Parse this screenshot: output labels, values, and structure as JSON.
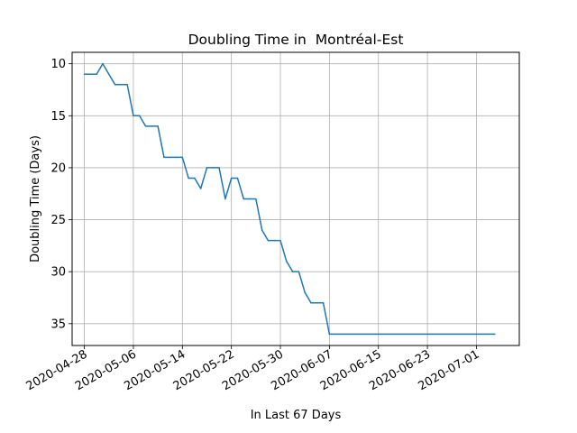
{
  "chart_data": {
    "type": "line",
    "title": "Doubling Time in  Montréal-Est",
    "xlabel": "In Last 67 Days",
    "ylabel": "Doubling Time (Days)",
    "y_inverted": true,
    "ylim": [
      37.1,
      8.9
    ],
    "xlim": [
      "2020-04-26",
      "2020-07-08"
    ],
    "grid": true,
    "x_ticks": [
      "2020-04-28",
      "2020-05-06",
      "2020-05-14",
      "2020-05-22",
      "2020-05-30",
      "2020-06-07",
      "2020-06-15",
      "2020-06-23",
      "2020-07-01"
    ],
    "y_ticks": [
      10,
      15,
      20,
      25,
      30,
      35
    ],
    "line_color": "#1f77b4",
    "series": [
      {
        "x": [
          "2020-04-28",
          "2020-04-29",
          "2020-04-30",
          "2020-05-01",
          "2020-05-02",
          "2020-05-03",
          "2020-05-04",
          "2020-05-05",
          "2020-05-06",
          "2020-05-07",
          "2020-05-08",
          "2020-05-09",
          "2020-05-10",
          "2020-05-11",
          "2020-05-12",
          "2020-05-13",
          "2020-05-14",
          "2020-05-15",
          "2020-05-16",
          "2020-05-17",
          "2020-05-18",
          "2020-05-19",
          "2020-05-20",
          "2020-05-21",
          "2020-05-22",
          "2020-05-23",
          "2020-05-24",
          "2020-05-25",
          "2020-05-26",
          "2020-05-27",
          "2020-05-28",
          "2020-05-29",
          "2020-05-30",
          "2020-05-31",
          "2020-06-01",
          "2020-06-02",
          "2020-06-03",
          "2020-06-04",
          "2020-06-05",
          "2020-06-06",
          "2020-06-07",
          "2020-07-04"
        ],
        "values": [
          11,
          11,
          11,
          10,
          11,
          12,
          12,
          12,
          15,
          15,
          16,
          16,
          16,
          19,
          19,
          19,
          19,
          21,
          21,
          22,
          20,
          20,
          20,
          23,
          21,
          21,
          23,
          23,
          23,
          26,
          27,
          27,
          27,
          29,
          30,
          30,
          32,
          33,
          33,
          33,
          36,
          36
        ]
      }
    ]
  }
}
